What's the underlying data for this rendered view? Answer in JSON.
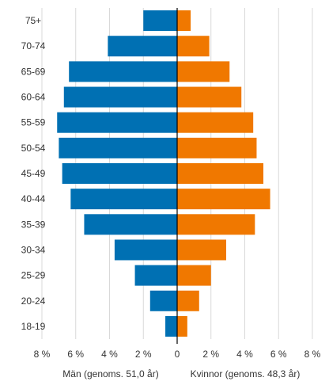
{
  "chart_data": {
    "type": "bar",
    "orientation": "horizontal",
    "layout": "population-pyramid",
    "categories": [
      "18-19",
      "20-24",
      "25-29",
      "30-34",
      "35-39",
      "40-44",
      "45-49",
      "50-54",
      "55-59",
      "60-64",
      "65-69",
      "70-74",
      "75+"
    ],
    "series": [
      {
        "name": "Män (genoms. 51,0 år)",
        "side": "left",
        "color": "#0070b3",
        "values": [
          0.7,
          1.6,
          2.5,
          3.7,
          5.5,
          6.3,
          6.8,
          7.0,
          7.1,
          6.7,
          6.4,
          4.1,
          2.0
        ]
      },
      {
        "name": "Kvinnor (genoms. 48,3 år)",
        "side": "right",
        "color": "#f07800",
        "values": [
          0.6,
          1.3,
          2.0,
          2.9,
          4.6,
          5.5,
          5.1,
          4.7,
          4.5,
          3.8,
          3.1,
          1.9,
          0.8
        ]
      }
    ],
    "xlim": [
      -8,
      8
    ],
    "x_ticks": [
      -8,
      -6,
      -4,
      -2,
      0,
      2,
      4,
      6,
      8
    ],
    "x_tick_labels": [
      "8 %",
      "6 %",
      "4 %",
      "2 %",
      "0",
      "2 %",
      "4 %",
      "6 %",
      "8 %"
    ],
    "xlabel_left": "Män (genoms. 51,0 år)",
    "xlabel_right": "Kvinnor (genoms. 48,3 år)",
    "grid": true,
    "grid_color": "#d9d9d9",
    "zero_line_color": "#000000"
  }
}
